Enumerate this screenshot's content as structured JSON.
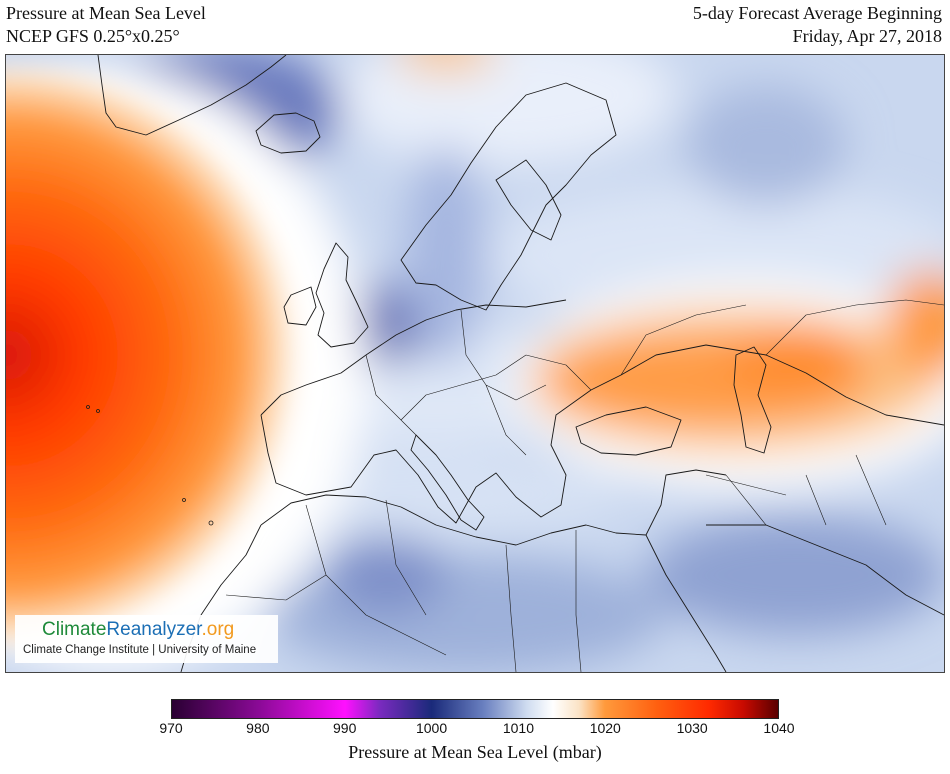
{
  "header": {
    "left_line1": "Pressure at Mean Sea Level",
    "left_line2": "NCEP GFS 0.25°x0.25°",
    "right_line1": "5-day Forecast Average Beginning",
    "right_line2": "Friday, Apr 27, 2018"
  },
  "logo": {
    "name_part1": "Climate",
    "name_part2": "Reanalyzer",
    "name_part3": ".org",
    "subtitle": "Climate Change Institute | University of Maine",
    "colors": {
      "part1": "#1f8a3a",
      "part2": "#1c6fb5",
      "part3": "#f29a1f"
    }
  },
  "colorbar": {
    "title": "Pressure at Mean Sea Level (mbar)",
    "min": 970,
    "max": 1040,
    "ticks": [
      "970",
      "980",
      "990",
      "1000",
      "1010",
      "1020",
      "1030",
      "1040"
    ],
    "color_stops": [
      {
        "value": 970,
        "color": "#2a0033"
      },
      {
        "value": 980,
        "color": "#8a0a96"
      },
      {
        "value": 990,
        "color": "#ff10ff"
      },
      {
        "value": 994,
        "color": "#7a2abf"
      },
      {
        "value": 1000,
        "color": "#1a2a7a"
      },
      {
        "value": 1006,
        "color": "#6a80c0"
      },
      {
        "value": 1011,
        "color": "#cfdcf0"
      },
      {
        "value": 1014,
        "color": "#ffffff"
      },
      {
        "value": 1017,
        "color": "#fbe3c6"
      },
      {
        "value": 1020,
        "color": "#ff9a3c"
      },
      {
        "value": 1026,
        "color": "#ff6010"
      },
      {
        "value": 1032,
        "color": "#ff2a00"
      },
      {
        "value": 1036,
        "color": "#c80a00"
      },
      {
        "value": 1040,
        "color": "#5a0000"
      }
    ]
  },
  "map": {
    "field": "mean sea level pressure",
    "region": "Europe, North Atlantic, North Africa, Middle East",
    "pressure_centers": [
      {
        "type": "high",
        "location": "central North Atlantic (Azores)",
        "value_mbar": 1033
      },
      {
        "type": "high",
        "location": "Black Sea / Caspian region",
        "value_mbar": 1022
      },
      {
        "type": "high",
        "location": "Caspian Sea / Kazakhstan",
        "value_mbar": 1025
      },
      {
        "type": "low",
        "location": "southern Greenland / Denmark Strait",
        "value_mbar": 1003
      },
      {
        "type": "low",
        "location": "North Sea / Netherlands",
        "value_mbar": 1004
      },
      {
        "type": "low",
        "location": "Sahara / Algeria",
        "value_mbar": 1006
      }
    ]
  }
}
